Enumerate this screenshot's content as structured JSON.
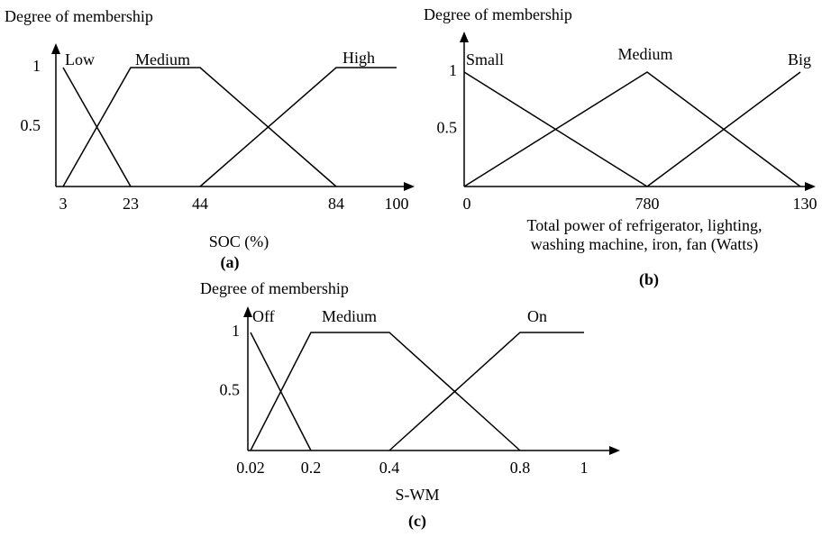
{
  "chart_data": [
    {
      "type": "line",
      "ylabel": "Degree of membership",
      "xlabel": [
        "SOC (%)"
      ],
      "caption": "(a)",
      "categories": [
        "3",
        "23",
        "44",
        "84",
        "100"
      ],
      "ylim": [
        0,
        1
      ],
      "yticks": [
        0.5,
        1
      ],
      "series": [
        {
          "name": "Low",
          "color": "#000000",
          "values": [
            1,
            0,
            null,
            null,
            null
          ]
        },
        {
          "name": "Medium",
          "color": "#000000",
          "values": [
            0,
            1,
            1,
            0,
            null
          ]
        },
        {
          "name": "High",
          "color": "#000000",
          "values": [
            null,
            null,
            0,
            1,
            1
          ]
        }
      ]
    },
    {
      "type": "line",
      "ylabel": "Degree of membership",
      "xlabel": [
        "Total power of refrigerator, lighting,",
        "washing machine, iron, fan (Watts)"
      ],
      "caption": "(b)",
      "categories": [
        "0",
        "780",
        "130"
      ],
      "ylim": [
        0,
        1
      ],
      "yticks": [
        0.5,
        1
      ],
      "series": [
        {
          "name": "Small",
          "color": "#000000",
          "values": [
            1,
            0,
            null
          ]
        },
        {
          "name": "Medium",
          "color": "#000000",
          "values": [
            0,
            1,
            0
          ]
        },
        {
          "name": "Big",
          "color": "#000000",
          "values": [
            null,
            0,
            1
          ]
        }
      ]
    },
    {
      "type": "line",
      "ylabel": "Degree of membership",
      "xlabel": [
        "S-WM"
      ],
      "caption": "(c)",
      "categories": [
        "0.02",
        "0.2",
        "0.4",
        "0.8",
        "1"
      ],
      "ylim": [
        0,
        1
      ],
      "yticks": [
        0.5,
        1
      ],
      "series": [
        {
          "name": "Off",
          "color": "#000000",
          "values": [
            1,
            0,
            null,
            null,
            null
          ]
        },
        {
          "name": "Medium",
          "color": "#000000",
          "values": [
            0,
            1,
            1,
            0,
            null
          ]
        },
        {
          "name": "On",
          "color": "#000000",
          "values": [
            null,
            null,
            0,
            1,
            1
          ]
        }
      ]
    }
  ]
}
